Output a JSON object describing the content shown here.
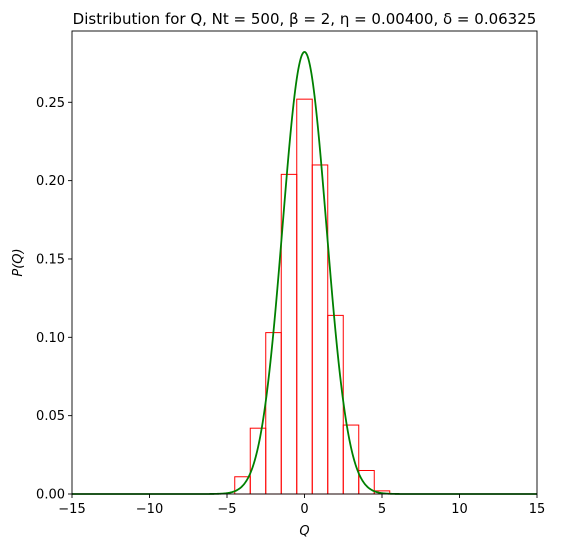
{
  "chart_data": {
    "type": "bar",
    "title": "Distribution for Q, Nt = 500, β = 2, η = 0.00400, δ = 0.06325",
    "xlabel": "Q",
    "ylabel": "P(Q)",
    "xlim": [
      -15,
      15
    ],
    "ylim": [
      0,
      0.2955
    ],
    "xticks": [
      -15,
      -10,
      -5,
      0,
      5,
      10,
      15
    ],
    "xtick_labels": [
      "−15",
      "−10",
      "−5",
      "0",
      "5",
      "10",
      "15"
    ],
    "yticks": [
      0.0,
      0.05,
      0.1,
      0.15,
      0.2,
      0.25
    ],
    "ytick_labels": [
      "0.00",
      "0.05",
      "0.10",
      "0.15",
      "0.20",
      "0.25"
    ],
    "grid": false,
    "histogram": {
      "bin_edges": [
        -4.5,
        -3.5,
        -2.5,
        -1.5,
        -0.5,
        0.5,
        1.5,
        2.5,
        3.5,
        4.5,
        5.5
      ],
      "values": [
        0.011,
        0.042,
        0.103,
        0.204,
        0.252,
        0.21,
        0.114,
        0.044,
        0.015,
        0.002
      ],
      "color": "#ff0000"
    },
    "curve": {
      "type": "gaussian",
      "mean": 0.0,
      "sigma": 1.414,
      "x_range": [
        -15,
        15
      ],
      "color": "#008000"
    }
  }
}
